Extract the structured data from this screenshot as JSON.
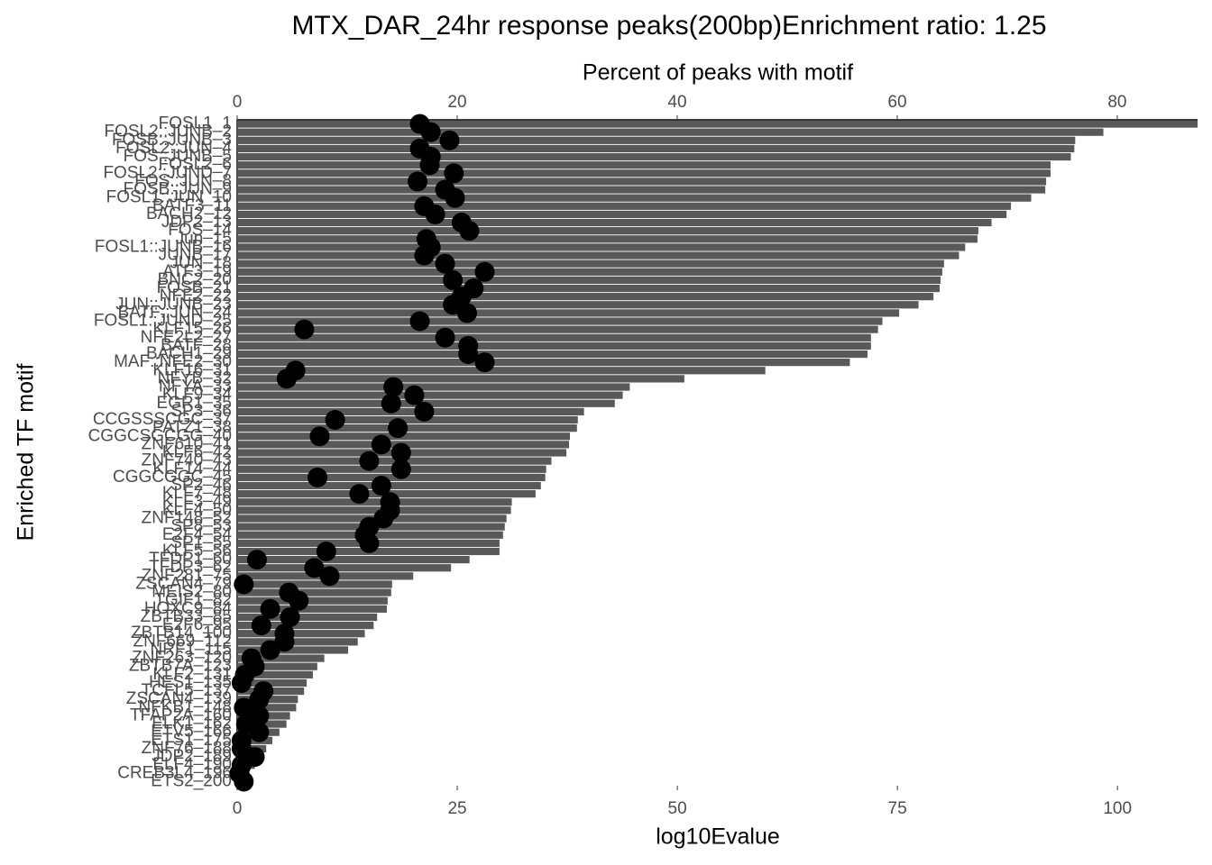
{
  "chart_data": {
    "type": "bar",
    "orientation": "horizontal",
    "title": "MTX_DAR_24hr response peaks(200bp)Enrichment ratio: 1.25",
    "x_label": "log10Evalue",
    "x2_label": "Percent of peaks with motif",
    "y_label": "Enriched TF motif",
    "categories": [
      "FOSL1_1",
      "FOSL2::JUNB_2",
      "FOSB::JUNB_3",
      "FOSL2::JUN_4",
      "FOS::JUNB_5",
      "FOSL2_6",
      "FOSL2::JUND_7",
      "FOS::JUN_8",
      "FOSB::JUN_9",
      "FOSL1::JUN_10",
      "BATF3_11",
      "BACH2_12",
      "JDP2_13",
      "FOS_14",
      "Jun_15",
      "FOSL1::JUNB_16",
      "JUNB_17",
      "JUN_18",
      "ATF3_19",
      "BNC2_20",
      "FOSB_21",
      "NFE2_22",
      "JUN::JUNB_23",
      "BATF::JUN_24",
      "FOSL1::JUND_25",
      "KLF15_26",
      "NFE2L2_27",
      "BATF_28",
      "BACH1_29",
      "MAF::NFE2_30",
      "KLF16_31",
      "NFYB_32",
      "NFYA_33",
      "KLF9_34",
      "EGR1_35",
      "SP3_36",
      "CCGSSSCGC_37",
      "PATZ1_38",
      "CGGCSGCGG_40",
      "ZNF610_41",
      "KLF6_42",
      "ZNF740_43",
      "KLF14_44",
      "CGGCGGC_45",
      "SP2_46",
      "KLF7_48",
      "KLF3_49",
      "KLF4_50",
      "ZNF148_52",
      "SP8_53",
      "E2F4_54",
      "SP1_55",
      "KLF5_56",
      "TFDP1_60",
      "TFDP3_62",
      "ZNF281_75",
      "ZSCAN4_79",
      "MEIS2_80",
      "TGIF1_82",
      "HOXC9_84",
      "ZBTB33_85",
      "E2F6_95",
      "ZBTB14_100",
      "ZNF669_112",
      "NRF1_115",
      "ZNF263_120",
      "ZBTB7A_123",
      "KLF2_131",
      "HES1_135",
      "TCFL5_137",
      "ZSCAN4_139",
      "NFKB1_148",
      "TFAP2A_160",
      "ELK1_162",
      "ETV5_166",
      "ETS1_175",
      "ZNF76_188",
      "JDP2_189",
      "ELF4_190",
      "CREB3L4_196",
      "ETS2_200"
    ],
    "series": [
      {
        "type": "bar",
        "color": "#595959",
        "values": [
          109.1,
          98.4,
          95.2,
          95.1,
          94.7,
          92.4,
          92.4,
          91.9,
          91.8,
          90.2,
          87.9,
          87.4,
          85.7,
          84.2,
          84.1,
          82.7,
          82.0,
          80.3,
          80.1,
          79.9,
          79.8,
          79.1,
          77.4,
          75.2,
          73.3,
          72.8,
          72.0,
          72.0,
          71.6,
          69.6,
          60.0,
          50.8,
          44.6,
          43.8,
          42.9,
          39.4,
          38.7,
          38.6,
          37.8,
          37.7,
          37.4,
          35.7,
          35.1,
          35.0,
          34.5,
          33.9,
          31.2,
          31.1,
          30.6,
          30.4,
          30.2,
          29.8,
          29.8,
          26.4,
          24.3,
          20.0,
          17.6,
          17.5,
          17.1,
          17.0,
          15.9,
          15.5,
          14.5,
          13.7,
          12.6,
          9.9,
          9.1,
          8.6,
          7.9,
          7.6,
          6.9,
          6.7,
          6.0,
          5.6,
          4.8,
          4.0,
          3.3,
          2.6,
          2.0,
          1.4,
          0.8
        ]
      },
      {
        "type": "scatter",
        "axis": "x2",
        "color": "#000000",
        "values": [
          16.6,
          17.6,
          19.3,
          16.6,
          17.6,
          17.5,
          19.7,
          16.4,
          18.9,
          19.8,
          17.0,
          18.0,
          20.4,
          21.1,
          17.2,
          17.6,
          17.0,
          18.9,
          22.5,
          19.6,
          21.5,
          20.4,
          19.6,
          20.9,
          16.6,
          6.1,
          18.9,
          21.0,
          21.0,
          22.5,
          5.3,
          4.5,
          14.2,
          16.1,
          14.0,
          17.0,
          8.9,
          14.6,
          7.5,
          13.1,
          14.9,
          12.0,
          14.9,
          7.3,
          13.1,
          11.1,
          13.9,
          13.9,
          13.3,
          12.0,
          11.6,
          12.0,
          8.1,
          1.8,
          7.0,
          8.4,
          0.6,
          4.7,
          5.6,
          3.0,
          4.8,
          2.2,
          4.3,
          4.3,
          3.0,
          1.3,
          1.6,
          0.7,
          0.4,
          2.4,
          2.0,
          0.6,
          2.0,
          0.8,
          2.0,
          0.4,
          0.4,
          1.6,
          0.4,
          0.2,
          0.6
        ]
      }
    ],
    "xlim": [
      0,
      109.1
    ],
    "xticks": [
      0,
      25,
      50,
      75,
      100
    ],
    "x2lim": [
      0,
      87.3
    ],
    "x2ticks": [
      0,
      20,
      40,
      60,
      80
    ]
  }
}
